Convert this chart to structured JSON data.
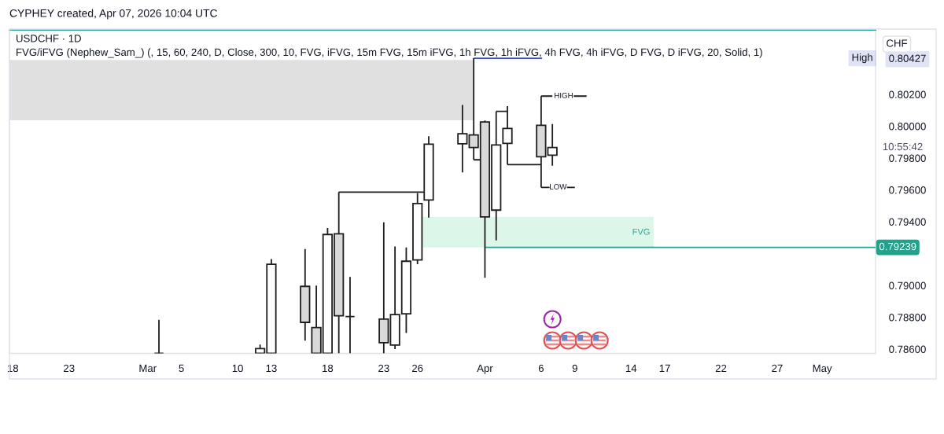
{
  "chart_data": {
    "type": "candlestick",
    "title": "USDCHF · 1D",
    "subtitle": "FVG/iFVG (Nephew_Sam_) (, 15, 60, 240, D, Close, 300, 10, FVG, iFVG, 15m FVG, 15m iFVG, 1h FVG, 1h iFVG, 4h FVG, 4h iFVG, D FVG, D iFVG, 20, Solid, 1)",
    "ylabel": "CHF",
    "x": [
      "2026-03-03",
      "2026-03-12",
      "2026-03-13",
      "2026-03-16",
      "2026-03-17",
      "2026-03-18",
      "2026-03-19",
      "2026-03-20",
      "2026-03-23",
      "2026-03-24",
      "2026-03-25",
      "2026-03-26",
      "2026-03-27",
      "2026-03-30",
      "2026-03-31",
      "2026-04-01",
      "2026-04-02",
      "2026-04-03",
      "2026-04-06",
      "2026-04-07"
    ],
    "ohlc": [
      [
        0.78573,
        0.78784,
        0.78573,
        0.78573
      ],
      [
        0.78573,
        0.78628,
        0.78573,
        0.78603
      ],
      [
        0.78573,
        0.79166,
        0.78573,
        0.79133
      ],
      [
        0.78994,
        0.79229,
        0.78653,
        0.78768
      ],
      [
        0.78735,
        0.78999,
        0.78573,
        0.78573
      ],
      [
        0.78573,
        0.79361,
        0.78573,
        0.7932
      ],
      [
        0.79324,
        0.79586,
        0.78573,
        0.78809
      ],
      [
        0.78804,
        0.79053,
        0.78573,
        0.78804
      ],
      [
        0.78788,
        0.79397,
        0.78573,
        0.7864
      ],
      [
        0.78625,
        0.79245,
        0.786,
        0.78817
      ],
      [
        0.78822,
        0.79239,
        0.78702,
        0.79152
      ],
      [
        0.7916,
        0.7958,
        0.79133,
        0.79514
      ],
      [
        0.79537,
        0.79937,
        0.79426,
        0.79887
      ],
      [
        0.7989,
        0.80134,
        0.7971,
        0.79953
      ],
      [
        0.79945,
        0.80427,
        0.79789,
        0.79866
      ],
      [
        0.80027,
        0.80036,
        0.79048,
        0.7943
      ],
      [
        0.79473,
        0.80093,
        0.79283,
        0.79882
      ],
      [
        0.79892,
        0.80126,
        0.79759,
        0.79986
      ],
      [
        0.80006,
        0.80189,
        0.79616,
        0.79808
      ],
      [
        0.79818,
        0.80014,
        0.79752,
        0.79866
      ]
    ],
    "colors": [
      "#1e1e1e",
      "#ffffff",
      "#ffffff",
      "#d9d9d9",
      "#d9d9d9",
      "#ffffff",
      "#d9d9d9",
      "#1e1e1e",
      "#d9d9d9",
      "#ffffff",
      "#ffffff",
      "#ffffff",
      "#ffffff",
      "#ffffff",
      "#d9d9d9",
      "#d9d9d9",
      "#ffffff",
      "#ffffff",
      "#d9d9d9",
      "#ffffff"
    ],
    "series": [
      {
        "type": "line",
        "color": "#e0e0e0",
        "x": [
          "2026-02-17T16:48",
          "2026-03-31"
        ],
        "values": [
          0.80412,
          0.80412
        ],
        "lower": [
          0.80037,
          0.80037
        ],
        "upper": [
          0.80412,
          0.80412
        ]
      },
      {
        "type": "line",
        "name": "FVG",
        "color": "#ddf6ea",
        "x": [
          "2026-03-25T14:24",
          "2026-04-16"
        ],
        "values": [
          0.79426,
          0.79426
        ],
        "lower": [
          0.79239,
          0.79239
        ],
        "upper": [
          0.79426,
          0.79426
        ]
      },
      {
        "type": "line",
        "color": "#1e1e1e",
        "x": [
          "2026-03-19",
          "2026-03-26T14:00"
        ],
        "values": [
          0.79586,
          0.79586
        ]
      },
      {
        "type": "line",
        "color": "#1e1e1e",
        "x": [
          "2026-03-31",
          "2026-03-31T16:00"
        ],
        "values": [
          0.79789,
          0.79789
        ]
      },
      {
        "type": "line",
        "color": "#1e1e1e",
        "x": [
          "2026-04-02",
          "2026-04-03"
        ],
        "values": [
          0.80093,
          0.80093
        ]
      },
      {
        "type": "line",
        "color": "#1e1e1e",
        "x": [
          "2026-04-03",
          "2026-04-06"
        ],
        "values": [
          0.79759,
          0.79759
        ]
      },
      {
        "type": "line",
        "name": "HIGH",
        "color": "#1e1e1e",
        "x": [
          "2026-04-06",
          "2026-04-07",
          "2026-04-08",
          "2026-04-08T21:30",
          "2026-04-10T01:00"
        ],
        "values": [
          0.80189,
          0.80189,
          null,
          0.80189,
          0.80189
        ]
      },
      {
        "type": "line",
        "name": "LOW",
        "color": "#1e1e1e",
        "x": [
          "2026-04-06",
          "2026-04-06T18:00",
          "2026-04-07T12:00",
          "2026-04-08T07:00",
          "2026-04-09"
        ],
        "values": [
          0.79616,
          0.79616,
          null,
          0.79616,
          0.79616
        ]
      },
      {
        "type": "line",
        "name": "High",
        "color": "#3d4fc4",
        "x": [
          "2026-03-31",
          "2026-04-06T02:00"
        ],
        "values": [
          0.80427,
          0.80427
        ]
      },
      {
        "type": "line",
        "color": "#22a18b",
        "x": [
          "2026-04-01",
          "2026-05-05T18:00"
        ],
        "values": [
          0.79239,
          0.79239
        ],
        "value_labels": [
          null,
          "0.79239"
        ]
      }
    ],
    "annotations": [
      "CYPHEY created, Apr 07, 2026 10:04 UTC",
      "10:55:42"
    ],
    "xlim": [
      "2026-02-17T16:48",
      "2026-05-05T18:00"
    ],
    "xticks": [
      {
        "value": "2026-02-18",
        "label": "18"
      },
      {
        "value": "2026-02-23",
        "label": "23"
      },
      {
        "value": "2026-03-02",
        "label": "Mar"
      },
      {
        "value": "2026-03-05",
        "label": "5"
      },
      {
        "value": "2026-03-10",
        "label": "10"
      },
      {
        "value": "2026-03-13",
        "label": "13"
      },
      {
        "value": "2026-03-18",
        "label": "18"
      },
      {
        "value": "2026-03-23",
        "label": "23"
      },
      {
        "value": "2026-03-26",
        "label": "26"
      },
      {
        "value": "2026-04-01",
        "label": "Apr"
      },
      {
        "value": "2026-04-06",
        "label": "6"
      },
      {
        "value": "2026-04-09",
        "label": "9"
      },
      {
        "value": "2026-04-14",
        "label": "14"
      },
      {
        "value": "2026-04-17",
        "label": "17"
      },
      {
        "value": "2026-04-22",
        "label": "22"
      },
      {
        "value": "2026-04-27",
        "label": "27"
      },
      {
        "value": "2026-05-01",
        "label": "May"
      }
    ],
    "ylim": [
      0.78573,
      0.80605
    ],
    "yticks": [
      {
        "value": 0.786,
        "label": "0.78600"
      },
      {
        "value": 0.788,
        "label": "0.78800"
      },
      {
        "value": 0.79,
        "label": "0.79000"
      },
      {
        "value": 0.794,
        "label": "0.79400"
      },
      {
        "value": 0.796,
        "label": "0.79600"
      },
      {
        "value": 0.798,
        "label": "0.79800"
      },
      {
        "value": 0.8,
        "label": "0.80000"
      },
      {
        "value": 0.802,
        "label": "0.80200"
      },
      {
        "value": 0.80427,
        "label": "0.80427"
      }
    ]
  }
}
